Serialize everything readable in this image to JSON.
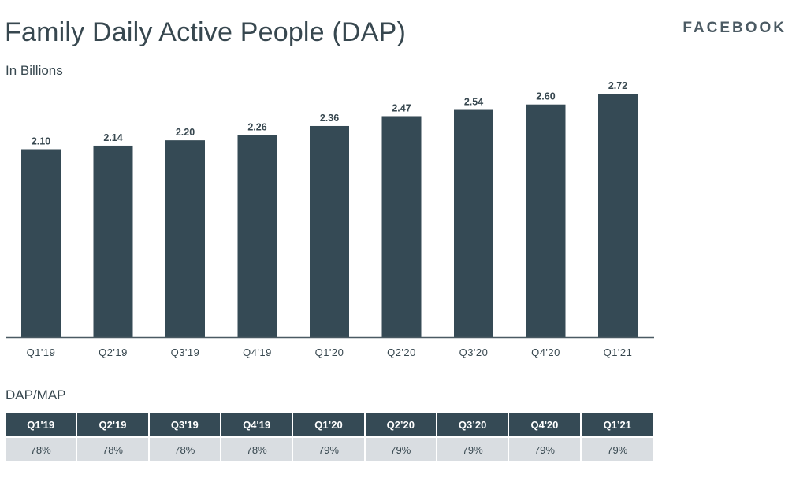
{
  "header": {
    "title": "Family Daily Active People (DAP)",
    "subtitle": "In Billions",
    "brand": "FACEBOOK"
  },
  "chart_data": {
    "type": "bar",
    "title": "Family Daily Active People (DAP)",
    "subtitle": "In Billions",
    "categories": [
      "Q1'19",
      "Q2'19",
      "Q3'19",
      "Q4'19",
      "Q1'20",
      "Q2'20",
      "Q3'20",
      "Q4'20",
      "Q1'21"
    ],
    "values": [
      2.1,
      2.14,
      2.2,
      2.26,
      2.36,
      2.47,
      2.54,
      2.6,
      2.72
    ],
    "value_labels": [
      "2.10",
      "2.14",
      "2.20",
      "2.26",
      "2.36",
      "2.47",
      "2.54",
      "2.60",
      "2.72"
    ],
    "ylim": [
      0,
      2.8
    ],
    "grid": false,
    "colors": {
      "bar": "#354a55",
      "axis": "#4a5a63",
      "label": "#37474f"
    }
  },
  "table": {
    "title": "DAP/MAP",
    "headers": [
      "Q1'19",
      "Q2'19",
      "Q3'19",
      "Q4'19",
      "Q1’20",
      "Q2’20",
      "Q3’20",
      "Q4'20",
      "Q1’21"
    ],
    "values": [
      "78%",
      "78%",
      "78%",
      "78%",
      "79%",
      "79%",
      "79%",
      "79%",
      "79%"
    ]
  }
}
